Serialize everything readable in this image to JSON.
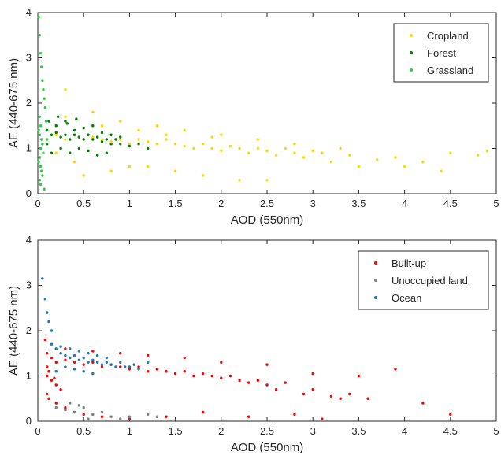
{
  "chart_data": [
    {
      "type": "scatter",
      "xlabel": "AOD (550nm)",
      "ylabel": "AE (440-675 nm)",
      "xlim": [
        0,
        5
      ],
      "ylim": [
        0,
        4
      ],
      "xticks": [
        "0",
        "0.5",
        "1",
        "1.5",
        "2",
        "2.5",
        "3",
        "3.5",
        "4",
        "4.5",
        "5"
      ],
      "yticks": [
        "0",
        "1",
        "2",
        "3",
        "4"
      ],
      "grid": false,
      "legend_position": "top-right",
      "series": [
        {
          "name": "Cropland",
          "color": "#ffd700",
          "x": [
            0.2,
            0.3,
            0.4,
            0.5,
            0.6,
            0.7,
            0.8,
            0.9,
            1.0,
            1.1,
            1.2,
            1.3,
            1.4,
            1.5,
            1.6,
            1.7,
            1.8,
            1.9,
            2.0,
            2.1,
            2.2,
            2.3,
            2.4,
            2.5,
            2.6,
            2.7,
            2.8,
            2.9,
            3.0,
            3.1,
            3.2,
            3.4,
            3.5,
            3.7,
            3.9,
            4.0,
            4.2,
            4.4,
            4.5,
            4.8,
            4.9,
            0.3,
            0.6,
            0.9,
            1.3,
            1.6,
            2.0,
            2.4,
            2.8,
            3.3,
            0.5,
            1.0,
            1.5,
            2.2,
            0.2,
            0.4,
            0.8,
            1.2,
            1.8,
            2.5,
            0.3,
            0.7,
            1.1,
            1.4,
            1.9
          ],
          "y": [
            1.3,
            1.2,
            1.3,
            1.2,
            1.25,
            1.2,
            1.15,
            1.2,
            1.1,
            1.2,
            1.15,
            1.1,
            1.2,
            1.1,
            1.05,
            1.0,
            1.1,
            1.0,
            0.95,
            1.05,
            1.0,
            0.9,
            1.0,
            0.95,
            0.85,
            1.0,
            0.9,
            0.8,
            0.95,
            0.9,
            0.7,
            0.85,
            0.6,
            0.75,
            0.8,
            0.6,
            0.7,
            0.5,
            0.9,
            0.85,
            0.95,
            2.3,
            1.8,
            1.6,
            1.5,
            1.4,
            1.3,
            1.2,
            1.1,
            1.0,
            0.4,
            0.6,
            0.5,
            0.3,
            0.9,
            0.7,
            0.5,
            0.6,
            0.4,
            0.3,
            1.7,
            1.5,
            1.4,
            1.3,
            1.25
          ]
        },
        {
          "name": "Forest",
          "color": "#008000",
          "x": [
            0.1,
            0.15,
            0.2,
            0.25,
            0.3,
            0.35,
            0.4,
            0.45,
            0.5,
            0.55,
            0.6,
            0.65,
            0.7,
            0.75,
            0.8,
            0.85,
            0.9,
            1.0,
            1.1,
            1.2,
            0.1,
            0.2,
            0.3,
            0.4,
            0.5,
            0.6,
            0.7,
            0.8,
            0.9,
            0.15,
            0.25,
            0.35,
            0.45,
            0.55,
            0.65,
            0.75,
            0.12,
            0.22,
            0.32,
            0.42
          ],
          "y": [
            1.4,
            1.3,
            1.35,
            1.25,
            1.3,
            1.2,
            1.3,
            1.25,
            1.2,
            1.3,
            1.2,
            1.25,
            1.15,
            1.2,
            1.1,
            1.2,
            1.1,
            1.05,
            1.1,
            1.0,
            1.1,
            1.5,
            1.6,
            1.4,
            1.45,
            1.5,
            1.35,
            1.3,
            1.25,
            0.9,
            1.0,
            0.9,
            1.0,
            0.95,
            0.85,
            0.9,
            1.6,
            1.7,
            1.55,
            1.65
          ]
        },
        {
          "name": "Grassland",
          "color": "#2ecc40",
          "x": [
            0.01,
            0.02,
            0.03,
            0.04,
            0.05,
            0.06,
            0.07,
            0.08,
            0.02,
            0.03,
            0.01,
            0.02,
            0.04,
            0.05,
            0.03,
            0.06,
            0.02,
            0.01,
            0.03,
            0.04,
            0.05,
            0.02,
            0.03,
            0.07,
            0.09,
            0.1
          ],
          "y": [
            3.9,
            3.5,
            3.1,
            2.8,
            2.5,
            2.3,
            2.1,
            1.9,
            1.7,
            1.5,
            1.4,
            1.3,
            1.2,
            1.1,
            1.0,
            0.9,
            0.8,
            0.7,
            0.6,
            0.5,
            0.4,
            0.3,
            0.2,
            0.1,
            1.6,
            1.2
          ]
        }
      ]
    },
    {
      "type": "scatter",
      "xlabel": "AOD (550nm)",
      "ylabel": "AE (440-675 nm)",
      "xlim": [
        0,
        5
      ],
      "ylim": [
        0,
        4
      ],
      "xticks": [
        "0",
        "0.5",
        "1",
        "1.5",
        "2",
        "2.5",
        "3",
        "3.5",
        "4",
        "4.5",
        "5"
      ],
      "yticks": [
        "0",
        "1",
        "2",
        "3",
        "4"
      ],
      "grid": false,
      "legend_position": "top-right",
      "series": [
        {
          "name": "Built-up",
          "color": "#ff0000",
          "x": [
            0.1,
            0.15,
            0.2,
            0.3,
            0.4,
            0.5,
            0.6,
            0.7,
            0.8,
            0.9,
            1.0,
            1.1,
            1.2,
            1.3,
            1.4,
            1.5,
            1.6,
            1.7,
            1.8,
            1.9,
            2.0,
            2.1,
            2.2,
            2.3,
            2.4,
            2.5,
            2.6,
            2.7,
            2.9,
            3.0,
            3.2,
            3.3,
            3.4,
            3.6,
            3.9,
            4.2,
            4.5,
            0.1,
            0.15,
            0.2,
            0.25,
            0.1,
            0.12,
            0.2,
            0.3,
            0.4,
            0.5,
            0.7,
            1.0,
            1.4,
            1.8,
            2.3,
            2.8,
            3.1,
            0.3,
            0.6,
            0.9,
            1.2,
            1.6,
            2.0,
            2.5,
            3.0,
            3.5,
            0.08,
            0.1,
            0.12,
            0.18
          ],
          "y": [
            1.5,
            1.4,
            1.3,
            1.35,
            1.3,
            1.25,
            1.3,
            1.2,
            1.25,
            1.2,
            1.15,
            1.2,
            1.1,
            1.15,
            1.1,
            1.05,
            1.1,
            1.0,
            1.05,
            1.0,
            0.95,
            1.0,
            0.9,
            0.85,
            0.9,
            0.8,
            0.7,
            0.85,
            0.6,
            0.7,
            0.55,
            0.5,
            0.6,
            0.5,
            1.15,
            0.4,
            0.15,
            1.0,
            0.9,
            0.8,
            0.7,
            0.6,
            0.5,
            0.4,
            0.3,
            0.2,
            0.15,
            0.1,
            0.05,
            0.1,
            0.2,
            0.1,
            0.15,
            0.05,
            1.6,
            1.55,
            1.5,
            1.45,
            1.4,
            1.3,
            1.25,
            1.05,
            1.0,
            1.8,
            1.2,
            1.1,
            0.95
          ]
        },
        {
          "name": "Unoccupied land",
          "color": "#808080",
          "x": [
            0.2,
            0.3,
            0.4,
            0.5,
            0.6,
            0.7,
            0.8,
            0.9,
            1.0,
            1.2,
            1.3,
            0.35,
            0.45,
            0.55
          ],
          "y": [
            0.3,
            0.25,
            0.2,
            0.3,
            0.15,
            0.2,
            0.1,
            0.05,
            0.1,
            0.15,
            0.1,
            0.4,
            0.35,
            0.05
          ]
        },
        {
          "name": "Ocean",
          "color": "#1f77b4",
          "x": [
            0.05,
            0.08,
            0.1,
            0.12,
            0.15,
            0.2,
            0.25,
            0.3,
            0.35,
            0.4,
            0.45,
            0.5,
            0.55,
            0.6,
            0.65,
            0.7,
            0.75,
            0.8,
            0.85,
            0.9,
            0.95,
            1.0,
            1.05,
            1.1,
            1.2,
            0.15,
            0.25,
            0.35,
            0.45,
            0.55,
            0.65,
            0.75,
            0.2,
            0.3,
            0.4,
            0.5,
            0.6
          ],
          "y": [
            3.15,
            2.7,
            2.4,
            2.2,
            2.0,
            1.6,
            1.5,
            1.45,
            1.4,
            1.45,
            1.35,
            1.4,
            1.3,
            1.35,
            1.3,
            1.25,
            1.3,
            1.25,
            1.2,
            1.3,
            1.2,
            1.2,
            1.25,
            1.15,
            1.3,
            1.7,
            1.65,
            1.6,
            1.55,
            1.5,
            1.45,
            1.4,
            1.1,
            1.2,
            1.15,
            1.1,
            1.05
          ]
        }
      ]
    }
  ]
}
